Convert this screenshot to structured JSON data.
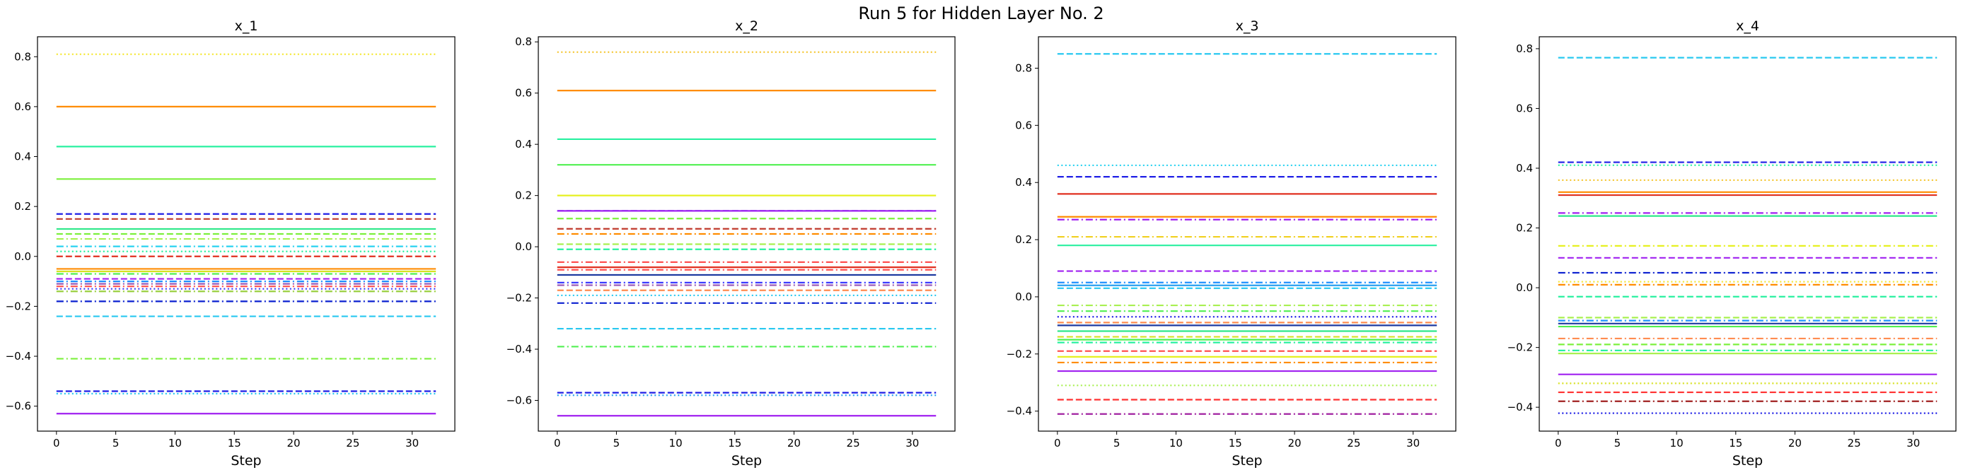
{
  "figure": {
    "suptitle": "Run 5 for Hidden Layer No. 2"
  },
  "chart_data": [
    {
      "type": "line",
      "title": "x_1",
      "xlabel": "Step",
      "ylabel": "",
      "x_range": [
        0,
        32
      ],
      "xlim": [
        -1.6,
        33.6
      ],
      "ylim": [
        -0.7,
        0.88
      ],
      "xticks": [
        0,
        5,
        10,
        15,
        20,
        25,
        30
      ],
      "yticks": [
        -0.6,
        -0.4,
        -0.2,
        0.0,
        0.2,
        0.4,
        0.6,
        0.8
      ],
      "grid": false,
      "series": [
        {
          "value": 0.81,
          "color": "#f5e733",
          "style": "dotted"
        },
        {
          "value": 0.6,
          "color": "#ff8c00",
          "style": "solid"
        },
        {
          "value": 0.44,
          "color": "#28f0a0",
          "style": "solid"
        },
        {
          "value": 0.31,
          "color": "#7cf03c",
          "style": "solid"
        },
        {
          "value": 0.17,
          "color": "#1e1ee6",
          "style": "dashed"
        },
        {
          "value": 0.15,
          "color": "#c0392b",
          "style": "dashed"
        },
        {
          "value": 0.11,
          "color": "#2ee88a",
          "style": "solid"
        },
        {
          "value": 0.09,
          "color": "#7cf03c",
          "style": "dashed"
        },
        {
          "value": 0.07,
          "color": "#a8f050",
          "style": "dashdot"
        },
        {
          "value": 0.04,
          "color": "#28d2f0",
          "style": "dashdot"
        },
        {
          "value": 0.02,
          "color": "#28f0a0",
          "style": "dotted"
        },
        {
          "value": 0.0,
          "color": "#e03020",
          "style": "dashed"
        },
        {
          "value": -0.05,
          "color": "#ff8c00",
          "style": "solid"
        },
        {
          "value": -0.06,
          "color": "#d7e020",
          "style": "solid"
        },
        {
          "value": -0.07,
          "color": "#50f050",
          "style": "dashdot"
        },
        {
          "value": -0.09,
          "color": "#a020f0",
          "style": "dashed"
        },
        {
          "value": -0.1,
          "color": "#1e90ff",
          "style": "dashdot"
        },
        {
          "value": -0.11,
          "color": "#9b59b6",
          "style": "dashdot"
        },
        {
          "value": -0.12,
          "color": "#ff5050",
          "style": "dashdot"
        },
        {
          "value": -0.13,
          "color": "#3a3aff",
          "style": "dotted"
        },
        {
          "value": -0.14,
          "color": "#9ad040",
          "style": "dashdot"
        },
        {
          "value": -0.18,
          "color": "#0a1fd0",
          "style": "dashdot"
        },
        {
          "value": -0.24,
          "color": "#28c8f0",
          "style": "dashed"
        },
        {
          "value": -0.41,
          "color": "#7cf03c",
          "style": "dashdot"
        },
        {
          "value": -0.54,
          "color": "#1e1ee6",
          "style": "dashed"
        },
        {
          "value": -0.55,
          "color": "#28c8f0",
          "style": "dotted"
        },
        {
          "value": -0.63,
          "color": "#a020f0",
          "style": "solid"
        }
      ]
    },
    {
      "type": "line",
      "title": "x_2",
      "xlabel": "Step",
      "ylabel": "",
      "x_range": [
        0,
        32
      ],
      "xlim": [
        -1.6,
        33.6
      ],
      "ylim": [
        -0.72,
        0.82
      ],
      "xticks": [
        0,
        5,
        10,
        15,
        20,
        25,
        30
      ],
      "yticks": [
        -0.6,
        -0.4,
        -0.2,
        0.0,
        0.2,
        0.4,
        0.6,
        0.8
      ],
      "grid": false,
      "series": [
        {
          "value": 0.76,
          "color": "#f5c633",
          "style": "dotted"
        },
        {
          "value": 0.61,
          "color": "#ff8c00",
          "style": "solid"
        },
        {
          "value": 0.42,
          "color": "#28f0a0",
          "style": "solid"
        },
        {
          "value": 0.32,
          "color": "#50f050",
          "style": "solid"
        },
        {
          "value": 0.2,
          "color": "#e6f020",
          "style": "solid"
        },
        {
          "value": 0.14,
          "color": "#1e1ee6",
          "style": "dashed"
        },
        {
          "value": 0.14,
          "color": "#a020f0",
          "style": "solid"
        },
        {
          "value": 0.11,
          "color": "#7cf03c",
          "style": "dashed"
        },
        {
          "value": 0.07,
          "color": "#c0392b",
          "style": "dashed"
        },
        {
          "value": 0.05,
          "color": "#ff8c00",
          "style": "dashdot"
        },
        {
          "value": 0.01,
          "color": "#a8f050",
          "style": "dashed"
        },
        {
          "value": -0.01,
          "color": "#28f0a0",
          "style": "dashed"
        },
        {
          "value": -0.06,
          "color": "#ff5050",
          "style": "dashdot"
        },
        {
          "value": -0.08,
          "color": "#e03020",
          "style": "solid"
        },
        {
          "value": -0.09,
          "color": "#ff5050",
          "style": "dashdot"
        },
        {
          "value": -0.11,
          "color": "#1e3aa0",
          "style": "solid"
        },
        {
          "value": -0.14,
          "color": "#3a3aff",
          "style": "dashdot"
        },
        {
          "value": -0.15,
          "color": "#9b59b6",
          "style": "dashdot"
        },
        {
          "value": -0.17,
          "color": "#ff8c50",
          "style": "dashed"
        },
        {
          "value": -0.19,
          "color": "#28c8f0",
          "style": "dotted"
        },
        {
          "value": -0.22,
          "color": "#0a1fd0",
          "style": "dashdot"
        },
        {
          "value": -0.32,
          "color": "#28c8f0",
          "style": "dashed"
        },
        {
          "value": -0.39,
          "color": "#50f050",
          "style": "dashdot"
        },
        {
          "value": -0.57,
          "color": "#1e1ee6",
          "style": "dashed"
        },
        {
          "value": -0.58,
          "color": "#28a0f0",
          "style": "dotted"
        },
        {
          "value": -0.66,
          "color": "#a020f0",
          "style": "solid"
        }
      ]
    },
    {
      "type": "line",
      "title": "x_3",
      "xlabel": "Step",
      "ylabel": "",
      "x_range": [
        0,
        32
      ],
      "xlim": [
        -1.6,
        33.6
      ],
      "ylim": [
        -0.47,
        0.91
      ],
      "xticks": [
        0,
        5,
        10,
        15,
        20,
        25,
        30
      ],
      "yticks": [
        -0.4,
        -0.2,
        0.0,
        0.2,
        0.4,
        0.6,
        0.8
      ],
      "grid": false,
      "series": [
        {
          "value": 0.85,
          "color": "#28c8f0",
          "style": "dashed"
        },
        {
          "value": 0.46,
          "color": "#28d2f0",
          "style": "dotted"
        },
        {
          "value": 0.42,
          "color": "#1e1ee6",
          "style": "dashed"
        },
        {
          "value": 0.36,
          "color": "#e03020",
          "style": "solid"
        },
        {
          "value": 0.28,
          "color": "#ff8c00",
          "style": "solid"
        },
        {
          "value": 0.27,
          "color": "#a020f0",
          "style": "dashdot"
        },
        {
          "value": 0.21,
          "color": "#f0d020",
          "style": "dashdot"
        },
        {
          "value": 0.18,
          "color": "#28f0a0",
          "style": "solid"
        },
        {
          "value": 0.09,
          "color": "#a020f0",
          "style": "dashed"
        },
        {
          "value": 0.05,
          "color": "#1e90ff",
          "style": "dashdot"
        },
        {
          "value": 0.04,
          "color": "#28a0f0",
          "style": "solid"
        },
        {
          "value": 0.03,
          "color": "#28c8f0",
          "style": "dashed"
        },
        {
          "value": -0.03,
          "color": "#a8f050",
          "style": "dashdot"
        },
        {
          "value": -0.05,
          "color": "#50f050",
          "style": "dashdot"
        },
        {
          "value": -0.07,
          "color": "#1e1ee6",
          "style": "dotted"
        },
        {
          "value": -0.09,
          "color": "#ff8c50",
          "style": "dashed"
        },
        {
          "value": -0.1,
          "color": "#1e3aa0",
          "style": "solid"
        },
        {
          "value": -0.12,
          "color": "#2ee88a",
          "style": "solid"
        },
        {
          "value": -0.14,
          "color": "#d7e020",
          "style": "dashed"
        },
        {
          "value": -0.15,
          "color": "#50f050",
          "style": "solid"
        },
        {
          "value": -0.16,
          "color": "#28f0a0",
          "style": "dashdot"
        },
        {
          "value": -0.19,
          "color": "#ff5050",
          "style": "dashed"
        },
        {
          "value": -0.21,
          "color": "#e6f020",
          "style": "solid"
        },
        {
          "value": -0.23,
          "color": "#ff8c00",
          "style": "dashdot"
        },
        {
          "value": -0.26,
          "color": "#a020f0",
          "style": "solid"
        },
        {
          "value": -0.31,
          "color": "#a8f050",
          "style": "dotted"
        },
        {
          "value": -0.36,
          "color": "#ff3030",
          "style": "dashed"
        },
        {
          "value": -0.41,
          "color": "#a020a0",
          "style": "dashdot"
        }
      ]
    },
    {
      "type": "line",
      "title": "x_4",
      "xlabel": "Step",
      "ylabel": "",
      "x_range": [
        0,
        32
      ],
      "xlim": [
        -1.6,
        33.6
      ],
      "ylim": [
        -0.48,
        0.84
      ],
      "xticks": [
        0,
        5,
        10,
        15,
        20,
        25,
        30
      ],
      "yticks": [
        -0.4,
        -0.2,
        0.0,
        0.2,
        0.4,
        0.6,
        0.8
      ],
      "grid": false,
      "series": [
        {
          "value": 0.77,
          "color": "#28c8f0",
          "style": "dashed"
        },
        {
          "value": 0.42,
          "color": "#1e1ee6",
          "style": "dashed"
        },
        {
          "value": 0.41,
          "color": "#28f0a0",
          "style": "dotted"
        },
        {
          "value": 0.36,
          "color": "#f5c633",
          "style": "dotted"
        },
        {
          "value": 0.32,
          "color": "#ff8c00",
          "style": "solid"
        },
        {
          "value": 0.31,
          "color": "#e03020",
          "style": "solid"
        },
        {
          "value": 0.25,
          "color": "#a020f0",
          "style": "dashdot"
        },
        {
          "value": 0.24,
          "color": "#2ee88a",
          "style": "solid"
        },
        {
          "value": 0.14,
          "color": "#e6f020",
          "style": "dashdot"
        },
        {
          "value": 0.1,
          "color": "#a020f0",
          "style": "dashed"
        },
        {
          "value": 0.05,
          "color": "#0a1fd0",
          "style": "dashdot"
        },
        {
          "value": 0.02,
          "color": "#f5e733",
          "style": "dotted"
        },
        {
          "value": 0.01,
          "color": "#ff8c00",
          "style": "dashdot"
        },
        {
          "value": -0.03,
          "color": "#28f0a0",
          "style": "dashed"
        },
        {
          "value": -0.1,
          "color": "#a8f050",
          "style": "dashed"
        },
        {
          "value": -0.11,
          "color": "#1e90ff",
          "style": "dashdot"
        },
        {
          "value": -0.12,
          "color": "#1e3aa0",
          "style": "solid"
        },
        {
          "value": -0.13,
          "color": "#50f050",
          "style": "solid"
        },
        {
          "value": -0.17,
          "color": "#ff8c50",
          "style": "dashdot"
        },
        {
          "value": -0.19,
          "color": "#7cf03c",
          "style": "dashed"
        },
        {
          "value": -0.21,
          "color": "#28f0a0",
          "style": "dashdot"
        },
        {
          "value": -0.22,
          "color": "#a8f050",
          "style": "solid"
        },
        {
          "value": -0.29,
          "color": "#a020f0",
          "style": "solid"
        },
        {
          "value": -0.32,
          "color": "#d7e020",
          "style": "dotted"
        },
        {
          "value": -0.35,
          "color": "#ff3030",
          "style": "dashed"
        },
        {
          "value": -0.38,
          "color": "#a02020",
          "style": "dashdot"
        },
        {
          "value": -0.42,
          "color": "#1e1ee6",
          "style": "dotted"
        }
      ]
    }
  ]
}
